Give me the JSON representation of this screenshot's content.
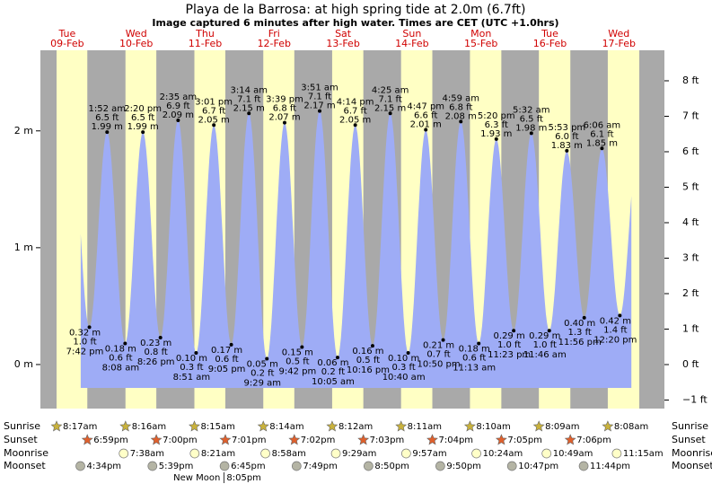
{
  "chart_data": {
    "type": "tide",
    "title": "Playa de la Barrosa: at high  spring tide at 2.0m (6.7ft)",
    "subtitle": "Image captured 6 minutes after high water. Times are CET (UTC +1.0hrs)",
    "days": [
      {
        "dow": "Tue",
        "date": "09-Feb"
      },
      {
        "dow": "Wed",
        "date": "10-Feb"
      },
      {
        "dow": "Thu",
        "date": "11-Feb"
      },
      {
        "dow": "Fri",
        "date": "12-Feb"
      },
      {
        "dow": "Sat",
        "date": "13-Feb"
      },
      {
        "dow": "Sun",
        "date": "14-Feb"
      },
      {
        "dow": "Mon",
        "date": "15-Feb"
      },
      {
        "dow": "Tue",
        "date": "16-Feb"
      },
      {
        "dow": "Wed",
        "date": "17-Feb"
      }
    ],
    "tides": [
      {
        "time": "7:42 pm",
        "m": 0.32,
        "m_label": "0.32 m",
        "ft": 1.0,
        "ft_label": "1.0 ft"
      },
      {
        "time": "1:52 am",
        "m": 1.99,
        "m_label": "1.99 m",
        "ft": 6.5,
        "ft_label": "6.5 ft"
      },
      {
        "time": "8:08 am",
        "m": 0.18,
        "m_label": "0.18 m",
        "ft": 0.6,
        "ft_label": "0.6 ft"
      },
      {
        "time": "2:20 pm",
        "m": 1.99,
        "m_label": "1.99 m",
        "ft": 6.5,
        "ft_label": "6.5 ft"
      },
      {
        "time": "8:26 pm",
        "m": 0.23,
        "m_label": "0.23 m",
        "ft": 0.8,
        "ft_label": "0.8 ft"
      },
      {
        "time": "2:35 am",
        "m": 2.09,
        "m_label": "2.09 m",
        "ft": 6.9,
        "ft_label": "6.9 ft"
      },
      {
        "time": "8:51 am",
        "m": 0.1,
        "m_label": "0.10 m",
        "ft": 0.3,
        "ft_label": "0.3 ft"
      },
      {
        "time": "3:01 pm",
        "m": 2.05,
        "m_label": "2.05 m",
        "ft": 6.7,
        "ft_label": "6.7 ft"
      },
      {
        "time": "9:05 pm",
        "m": 0.17,
        "m_label": "0.17 m",
        "ft": 0.6,
        "ft_label": "0.6 ft"
      },
      {
        "time": "3:14 am",
        "m": 2.15,
        "m_label": "2.15 m",
        "ft": 7.1,
        "ft_label": "7.1 ft"
      },
      {
        "time": "9:29 am",
        "m": 0.05,
        "m_label": "0.05 m",
        "ft": 0.2,
        "ft_label": "0.2 ft"
      },
      {
        "time": "3:39 pm",
        "m": 2.07,
        "m_label": "2.07 m",
        "ft": 6.8,
        "ft_label": "6.8 ft"
      },
      {
        "time": "9:42 pm",
        "m": 0.15,
        "m_label": "0.15 m",
        "ft": 0.5,
        "ft_label": "0.5 ft"
      },
      {
        "time": "3:51 am",
        "m": 2.17,
        "m_label": "2.17 m",
        "ft": 7.1,
        "ft_label": "7.1 ft"
      },
      {
        "time": "10:05 am",
        "m": 0.06,
        "m_label": "0.06 m",
        "ft": 0.2,
        "ft_label": "0.2 ft"
      },
      {
        "time": "4:14 pm",
        "m": 2.05,
        "m_label": "2.05 m",
        "ft": 6.7,
        "ft_label": "6.7 ft"
      },
      {
        "time": "10:16 pm",
        "m": 0.16,
        "m_label": "0.16 m",
        "ft": 0.5,
        "ft_label": "0.5 ft"
      },
      {
        "time": "4:25 am",
        "m": 2.15,
        "m_label": "2.15 m",
        "ft": 7.1,
        "ft_label": "7.1 ft"
      },
      {
        "time": "10:40 am",
        "m": 0.1,
        "m_label": "0.10 m",
        "ft": 0.3,
        "ft_label": "0.3 ft"
      },
      {
        "time": "4:47 pm",
        "m": 2.01,
        "m_label": "2.01 m",
        "ft": 6.6,
        "ft_label": "6.6 ft"
      },
      {
        "time": "10:50 pm",
        "m": 0.21,
        "m_label": "0.21 m",
        "ft": 0.7,
        "ft_label": "0.7 ft"
      },
      {
        "time": "4:59 am",
        "m": 2.08,
        "m_label": "2.08 m",
        "ft": 6.8,
        "ft_label": "6.8 ft"
      },
      {
        "time": "11:13 am",
        "m": 0.18,
        "m_label": "0.18 m",
        "ft": 0.6,
        "ft_label": "0.6 ft"
      },
      {
        "time": "5:20 pm",
        "m": 1.93,
        "m_label": "1.93 m",
        "ft": 6.3,
        "ft_label": "6.3 ft"
      },
      {
        "time": "11:23 pm",
        "m": 0.29,
        "m_label": "0.29 m",
        "ft": 1.0,
        "ft_label": "1.0 ft"
      },
      {
        "time": "5:32 am",
        "m": 1.98,
        "m_label": "1.98 m",
        "ft": 6.5,
        "ft_label": "6.5 ft"
      },
      {
        "time": "11:46 am",
        "m": 0.29,
        "m_label": "0.29 m",
        "ft": 1.0,
        "ft_label": "1.0 ft"
      },
      {
        "time": "5:53 pm",
        "m": 1.83,
        "m_label": "1.83 m",
        "ft": 6.0,
        "ft_label": "6.0 ft"
      },
      {
        "time": "11:56 pm",
        "m": 0.4,
        "m_label": "0.40 m",
        "ft": 1.3,
        "ft_label": "1.3 ft"
      },
      {
        "time": "6:06 am",
        "m": 1.85,
        "m_label": "1.85 m",
        "ft": 6.1,
        "ft_label": "6.1 ft"
      },
      {
        "time": "12:20 pm",
        "m": 0.42,
        "m_label": "0.42 m",
        "ft": 1.4,
        "ft_label": "1.4 ft"
      }
    ],
    "ylim": [
      -0.377,
      2.69
    ],
    "yticks": [
      {
        "value": 0,
        "label": "0 m"
      },
      {
        "value": 1,
        "label": "1 m"
      },
      {
        "value": 2,
        "label": "2 m"
      }
    ],
    "y2lim": [
      -1.24,
      8.86
    ],
    "y2ticks": [
      {
        "value": -1,
        "label": "−1 ft"
      },
      {
        "value": 0,
        "label": "0 ft"
      },
      {
        "value": 1,
        "label": "1 ft"
      },
      {
        "value": 2,
        "label": "2 ft"
      },
      {
        "value": 3,
        "label": "3 ft"
      },
      {
        "value": 4,
        "label": "4 ft"
      },
      {
        "value": 5,
        "label": "5 ft"
      },
      {
        "value": 6,
        "label": "6 ft"
      },
      {
        "value": 7,
        "label": "7 ft"
      },
      {
        "value": 8,
        "label": "8 ft"
      }
    ],
    "color": "#9eacf6",
    "astronomy": [
      {
        "name": "Sunrise",
        "times": [
          "8:17am",
          "8:16am",
          "8:15am",
          "8:14am",
          "8:12am",
          "8:11am",
          "8:10am",
          "8:09am",
          "8:08am"
        ]
      },
      {
        "name": "Sunset",
        "times": [
          "6:59pm",
          "7:00pm",
          "7:01pm",
          "7:02pm",
          "7:03pm",
          "7:04pm",
          "7:05pm",
          "7:06pm",
          null
        ]
      },
      {
        "name": "Moonrise",
        "times": [
          null,
          "7:38am",
          "8:21am",
          "8:58am",
          "9:29am",
          "9:57am",
          "10:24am",
          "10:49am",
          "11:15am"
        ]
      },
      {
        "name": "Moonset",
        "times": [
          "4:34pm",
          "5:39pm",
          "6:45pm",
          "7:49pm",
          "8:50pm",
          "9:50pm",
          "10:47pm",
          "11:44pm",
          null
        ]
      }
    ],
    "moon_phase": [
      null,
      null,
      {
        "name": "New Moon",
        "time": "8:05pm"
      },
      null,
      null,
      null,
      null,
      null,
      null
    ]
  }
}
